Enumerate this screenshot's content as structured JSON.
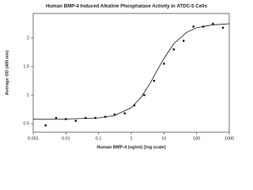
{
  "chart_data": {
    "type": "scatter",
    "title": "Human BMP-4 Induced Alkaline Phosphatase Activity in ATDC-5 Cells",
    "x_label": "Human BMP-4 (ng/ml) [log scale]",
    "y_label": "Average OD (405 nm)",
    "x_scale": "log",
    "x": [
      0.0024,
      0.005,
      0.01,
      0.02,
      0.04,
      0.08,
      0.16,
      0.31,
      0.63,
      1.25,
      2.5,
      5,
      10,
      20,
      40,
      80,
      160,
      320,
      640
    ],
    "values": [
      0.47,
      0.6,
      0.58,
      0.55,
      0.6,
      0.6,
      0.62,
      0.66,
      0.68,
      0.82,
      1.0,
      1.25,
      1.55,
      1.8,
      1.95,
      2.2,
      2.2,
      2.25,
      2.18
    ],
    "color": "#111111",
    "curve": {
      "x": [
        0.001,
        0.01,
        0.1,
        0.3,
        1,
        2,
        4,
        6,
        10,
        20,
        50,
        100,
        300,
        1000
      ],
      "y": [
        0.58,
        0.58,
        0.6,
        0.64,
        0.78,
        0.96,
        1.23,
        1.42,
        1.64,
        1.9,
        2.1,
        2.18,
        2.23,
        2.25
      ],
      "color": "#111111"
    },
    "xlim": [
      0.001,
      1000
    ],
    "xticks": [
      0.001,
      0.01,
      0.1,
      1,
      10,
      100,
      1000
    ],
    "ylim": [
      0.35,
      2.43
    ],
    "yticks": [
      0.5,
      1,
      1.5,
      2
    ]
  }
}
